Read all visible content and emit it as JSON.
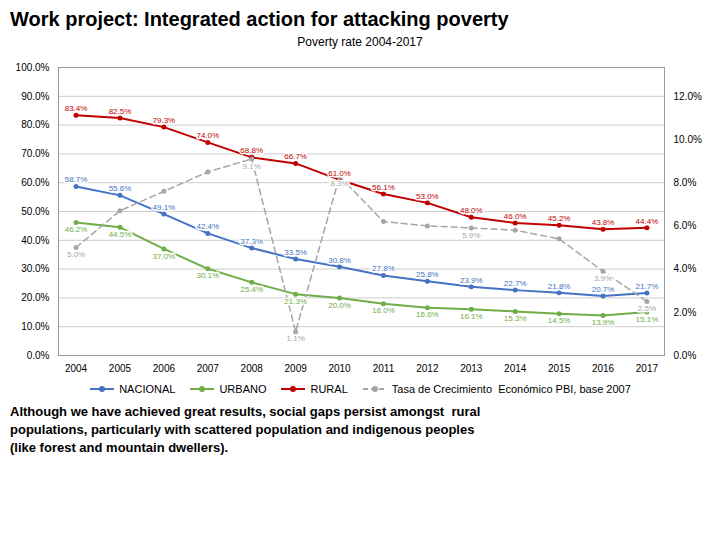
{
  "chart_data": {
    "type": "line",
    "title": "Work project: Integrated action for attacking poverty",
    "subtitle": "Poverty rate 2004-2017",
    "annotations": [
      "Although we have achieved great results, social gaps persist amongst  rural\npopulations, particularly with scattered population and indigenous peoples\n(like forest and mountain dwellers)."
    ],
    "x": [
      2004,
      2005,
      2006,
      2007,
      2008,
      2009,
      2010,
      2011,
      2012,
      2013,
      2014,
      2015,
      2016,
      2017
    ],
    "xlim": [
      2003.6,
      2017.4
    ],
    "xticks": [
      2004,
      2005,
      2006,
      2007,
      2008,
      2009,
      2010,
      2011,
      2012,
      2013,
      2014,
      2015,
      2016,
      2017
    ],
    "ylim": [
      0.0,
      1.0
    ],
    "yticks": [
      {
        "value": 0.0,
        "label": "0.0%"
      },
      {
        "value": 0.1,
        "label": "10.0%"
      },
      {
        "value": 0.2,
        "label": "20.0%"
      },
      {
        "value": 0.3,
        "label": "30.0%"
      },
      {
        "value": 0.4,
        "label": "40.0%"
      },
      {
        "value": 0.5,
        "label": "50.0%"
      },
      {
        "value": 0.6,
        "label": "60.0%"
      },
      {
        "value": 0.7,
        "label": "70.0%"
      },
      {
        "value": 0.8,
        "label": "80.0%"
      },
      {
        "value": 0.9,
        "label": "90.0%"
      },
      {
        "value": 1.0,
        "label": "100.0%"
      }
    ],
    "y2lim": [
      0.0,
      0.13333333333333333
    ],
    "y2ticks": [
      {
        "value": 0.0,
        "label": "0.0%"
      },
      {
        "value": 0.02,
        "label": "2.0%"
      },
      {
        "value": 0.04,
        "label": "4.0%"
      },
      {
        "value": 0.06,
        "label": "6.0%"
      },
      {
        "value": 0.08,
        "label": "8.0%"
      },
      {
        "value": 0.1,
        "label": "10.0%"
      },
      {
        "value": 0.12,
        "label": "12.0%"
      }
    ],
    "grid": true,
    "legend": "bottom",
    "data_labels": true,
    "series": [
      {
        "name": "NACIONAL",
        "color": "#4472C4",
        "marker": "circle",
        "line_style": "solid",
        "values": [
          0.587,
          0.556,
          0.491,
          0.424,
          0.373,
          0.335,
          0.308,
          0.278,
          0.258,
          0.239,
          0.227,
          0.218,
          0.207,
          0.217
        ],
        "value_labels": [
          "58.7%",
          "55.6%",
          "49.1%",
          "42.4%",
          "37.3%",
          "33.5%",
          "30.8%",
          "27.8%",
          "25.8%",
          "23.9%",
          "22.7%",
          "21.8%",
          "20.7%",
          "21.7%"
        ]
      },
      {
        "name": "URBANO",
        "color": "#70AD47",
        "marker": "circle",
        "line_style": "solid",
        "values": [
          0.462,
          0.445,
          0.37,
          0.301,
          0.254,
          0.213,
          0.2,
          0.18,
          0.166,
          0.161,
          0.153,
          0.145,
          0.139,
          0.151
        ],
        "value_labels": [
          "46.2%",
          "44.5%",
          "37.0%",
          "30.1%",
          "25.4%",
          "21.3%",
          "20.0%",
          "18.0%",
          "16.6%",
          "16.1%",
          "15.3%",
          "14.5%",
          "13.9%",
          "15.1%"
        ]
      },
      {
        "name": "RURAL",
        "color": "#C00000",
        "marker": "circle",
        "line_style": "solid",
        "values": [
          0.834,
          0.825,
          0.793,
          0.74,
          0.688,
          0.667,
          0.61,
          0.561,
          0.53,
          0.48,
          0.46,
          0.452,
          0.438,
          0.444
        ],
        "value_labels": [
          "83.4%",
          "82.5%",
          "79.3%",
          "74.0%",
          "68.8%",
          "66.7%",
          "61.0%",
          "56.1%",
          "53.0%",
          "48.0%",
          "46.0%",
          "45.2%",
          "43.8%",
          "44.4%"
        ]
      },
      {
        "name": "Tasa de Crecimiento  Económico PBI, base 2007",
        "color": "#A6A6A6",
        "marker": "circle",
        "line_style": "dashed",
        "axis": "y2",
        "values": [
          0.05,
          0.067,
          0.076,
          0.085,
          0.091,
          0.011,
          0.083,
          0.062,
          0.06,
          0.059,
          0.058,
          0.054,
          0.039,
          0.025
        ],
        "value_labels": [
          "5.0%",
          null,
          null,
          null,
          "9.1%",
          "1.1%",
          "8.3%",
          null,
          null,
          "5.9%",
          null,
          null,
          "3.9%",
          "2.5%"
        ]
      }
    ]
  }
}
